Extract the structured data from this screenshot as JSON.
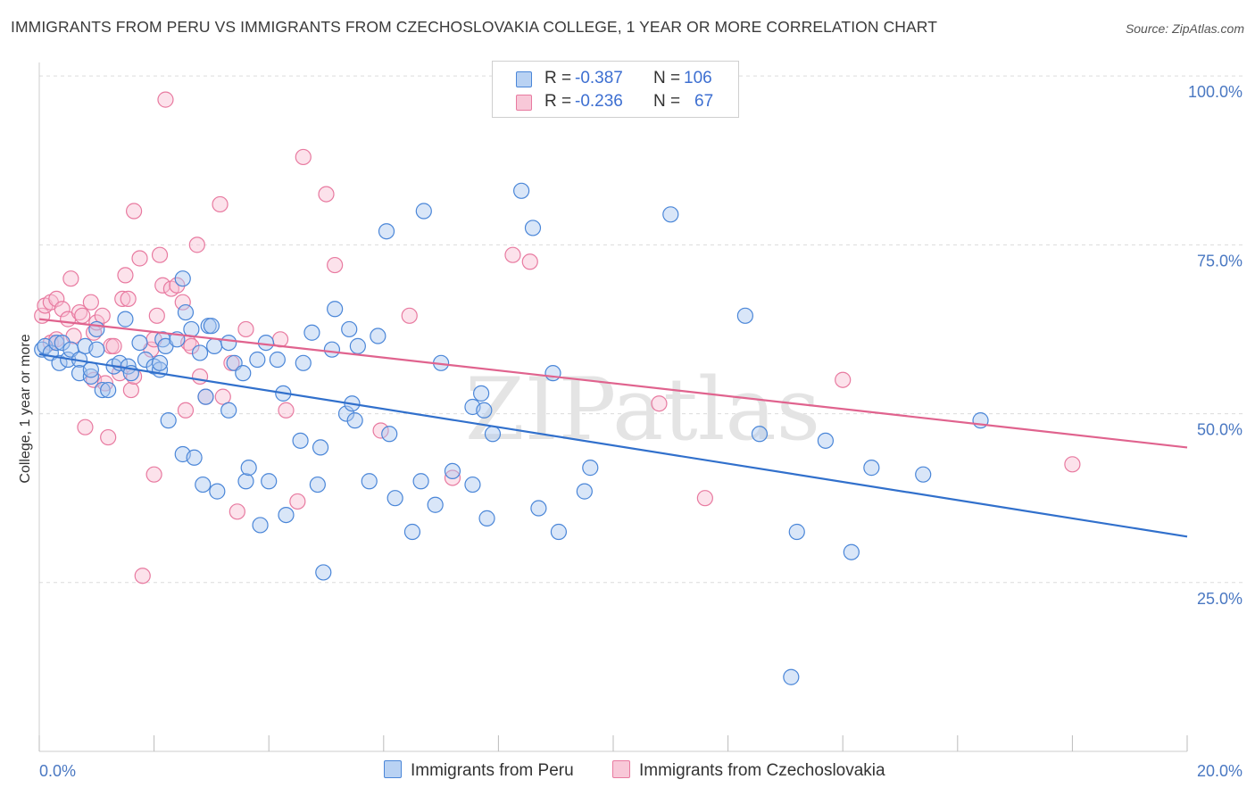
{
  "title": "IMMIGRANTS FROM PERU VS IMMIGRANTS FROM CZECHOSLOVAKIA COLLEGE, 1 YEAR OR MORE CORRELATION CHART",
  "source": "Source: ZipAtlas.com",
  "legend": {
    "r_label": "R =",
    "n_label": "N =",
    "series": [
      {
        "r": "-0.387",
        "n": "106"
      },
      {
        "r": "-0.236",
        "n": "67"
      }
    ]
  },
  "watermark": "ZIPatlas",
  "chart_data": {
    "type": "scatter",
    "title": "IMMIGRANTS FROM PERU VS IMMIGRANTS FROM CZECHOSLOVAKIA COLLEGE, 1 YEAR OR MORE CORRELATION CHART",
    "xlabel": "",
    "ylabel": "College, 1 year or more",
    "xlim": [
      0,
      20
    ],
    "ylim": [
      0,
      102
    ],
    "x_tick_labels": [
      "0.0%",
      "20.0%"
    ],
    "y_ticks": [
      25,
      50,
      75,
      100
    ],
    "y_tick_labels": [
      "25.0%",
      "50.0%",
      "75.0%",
      "100.0%"
    ],
    "grid": true,
    "colors": {
      "peru": "#4a86d8",
      "czech": "#e87aa0",
      "peru_line": "#3170cc",
      "czech_line": "#e0638e"
    },
    "series": [
      {
        "name": "Immigrants from Peru",
        "r": -0.387,
        "n": 106,
        "trend": {
          "x0": 0,
          "y0": 58.8,
          "x1": 20,
          "y1": 31.8
        },
        "points": [
          [
            0.05,
            59.5
          ],
          [
            0.1,
            60
          ],
          [
            0.2,
            59
          ],
          [
            0.3,
            60.5
          ],
          [
            0.35,
            57.5
          ],
          [
            0.4,
            60.5
          ],
          [
            0.5,
            58
          ],
          [
            0.55,
            59.5
          ],
          [
            0.7,
            58
          ],
          [
            0.7,
            56
          ],
          [
            0.8,
            60
          ],
          [
            0.9,
            55.5
          ],
          [
            0.9,
            56.5
          ],
          [
            1.0,
            62.5
          ],
          [
            1.0,
            59.5
          ],
          [
            1.1,
            53.5
          ],
          [
            1.2,
            53.5
          ],
          [
            1.3,
            57
          ],
          [
            1.4,
            57.5
          ],
          [
            1.5,
            64
          ],
          [
            1.55,
            57
          ],
          [
            1.6,
            56
          ],
          [
            1.75,
            60.5
          ],
          [
            1.85,
            58
          ],
          [
            2.0,
            57
          ],
          [
            2.1,
            56.5
          ],
          [
            2.15,
            61
          ],
          [
            2.1,
            57.5
          ],
          [
            2.2,
            60
          ],
          [
            2.25,
            49
          ],
          [
            2.4,
            61
          ],
          [
            2.5,
            70
          ],
          [
            2.5,
            44
          ],
          [
            2.55,
            65
          ],
          [
            2.65,
            62.5
          ],
          [
            2.7,
            43.5
          ],
          [
            2.8,
            59
          ],
          [
            2.85,
            39.5
          ],
          [
            2.9,
            52.5
          ],
          [
            2.95,
            63
          ],
          [
            3.0,
            63
          ],
          [
            3.1,
            38.5
          ],
          [
            3.05,
            60
          ],
          [
            3.3,
            60.5
          ],
          [
            3.3,
            50.5
          ],
          [
            3.4,
            57.5
          ],
          [
            3.55,
            56
          ],
          [
            3.6,
            40
          ],
          [
            3.65,
            42
          ],
          [
            3.8,
            58
          ],
          [
            3.85,
            33.5
          ],
          [
            3.95,
            60.5
          ],
          [
            4.0,
            40
          ],
          [
            4.15,
            58
          ],
          [
            4.25,
            53
          ],
          [
            4.3,
            35
          ],
          [
            4.55,
            46
          ],
          [
            4.6,
            57.5
          ],
          [
            4.75,
            62
          ],
          [
            4.85,
            39.5
          ],
          [
            4.9,
            45
          ],
          [
            4.95,
            26.5
          ],
          [
            5.1,
            59.5
          ],
          [
            5.15,
            65.5
          ],
          [
            5.35,
            50
          ],
          [
            5.4,
            62.5
          ],
          [
            5.45,
            51.5
          ],
          [
            5.5,
            49
          ],
          [
            5.55,
            60
          ],
          [
            5.75,
            40
          ],
          [
            5.9,
            61.5
          ],
          [
            6.05,
            77
          ],
          [
            6.1,
            47
          ],
          [
            6.2,
            37.5
          ],
          [
            6.5,
            32.5
          ],
          [
            6.65,
            40
          ],
          [
            6.7,
            80
          ],
          [
            6.9,
            36.5
          ],
          [
            7.0,
            57.5
          ],
          [
            7.2,
            41.5
          ],
          [
            7.55,
            51
          ],
          [
            7.55,
            39.5
          ],
          [
            7.7,
            53
          ],
          [
            7.75,
            50.5
          ],
          [
            7.8,
            34.5
          ],
          [
            7.9,
            47
          ],
          [
            8.4,
            83
          ],
          [
            8.6,
            77.5
          ],
          [
            8.7,
            36
          ],
          [
            8.95,
            56
          ],
          [
            9.05,
            32.5
          ],
          [
            9.5,
            38.5
          ],
          [
            9.6,
            42
          ],
          [
            11.0,
            79.5
          ],
          [
            12.3,
            64.5
          ],
          [
            12.55,
            47
          ],
          [
            13.2,
            32.5
          ],
          [
            13.7,
            46
          ],
          [
            14.15,
            29.5
          ],
          [
            14.5,
            42
          ],
          [
            15.4,
            41
          ],
          [
            16.4,
            49
          ],
          [
            13.1,
            11
          ]
        ]
      },
      {
        "name": "Immigrants from Czechoslovakia",
        "r": -0.236,
        "n": 67,
        "trend": {
          "x0": 0,
          "y0": 64.0,
          "x1": 20,
          "y1": 45.0
        },
        "points": [
          [
            0.05,
            64.5
          ],
          [
            0.1,
            66
          ],
          [
            0.2,
            66.5
          ],
          [
            0.2,
            60.5
          ],
          [
            0.3,
            67
          ],
          [
            0.3,
            61
          ],
          [
            0.4,
            65.5
          ],
          [
            0.5,
            64
          ],
          [
            0.55,
            70
          ],
          [
            0.6,
            61.5
          ],
          [
            0.7,
            65
          ],
          [
            0.75,
            64.5
          ],
          [
            0.8,
            48
          ],
          [
            0.9,
            66.5
          ],
          [
            0.95,
            62
          ],
          [
            0.95,
            55
          ],
          [
            1.0,
            63.5
          ],
          [
            1.1,
            64.5
          ],
          [
            1.15,
            54.5
          ],
          [
            1.2,
            46.5
          ],
          [
            1.25,
            60
          ],
          [
            1.3,
            60
          ],
          [
            1.4,
            56
          ],
          [
            1.45,
            67
          ],
          [
            1.5,
            70.5
          ],
          [
            1.55,
            67
          ],
          [
            1.6,
            53.5
          ],
          [
            1.65,
            55.5
          ],
          [
            1.65,
            80
          ],
          [
            1.75,
            73
          ],
          [
            1.8,
            26
          ],
          [
            1.95,
            59.5
          ],
          [
            2.0,
            61
          ],
          [
            2.0,
            41
          ],
          [
            2.05,
            64.5
          ],
          [
            2.1,
            73.5
          ],
          [
            2.15,
            69
          ],
          [
            2.2,
            96.5
          ],
          [
            2.3,
            68.5
          ],
          [
            2.4,
            69
          ],
          [
            2.5,
            66.5
          ],
          [
            2.55,
            50.5
          ],
          [
            2.6,
            60.5
          ],
          [
            2.65,
            60
          ],
          [
            2.75,
            75
          ],
          [
            2.8,
            55.5
          ],
          [
            2.9,
            52.5
          ],
          [
            3.15,
            81
          ],
          [
            3.2,
            52.5
          ],
          [
            3.35,
            57.5
          ],
          [
            3.45,
            35.5
          ],
          [
            3.6,
            62.5
          ],
          [
            4.2,
            61
          ],
          [
            4.3,
            50.5
          ],
          [
            4.5,
            37
          ],
          [
            4.6,
            88
          ],
          [
            5.0,
            82.5
          ],
          [
            5.15,
            72
          ],
          [
            5.95,
            47.5
          ],
          [
            6.45,
            64.5
          ],
          [
            7.2,
            40.5
          ],
          [
            8.25,
            73.5
          ],
          [
            8.55,
            72.5
          ],
          [
            10.8,
            51.5
          ],
          [
            11.6,
            37.5
          ],
          [
            14.0,
            55
          ],
          [
            18.0,
            42.5
          ]
        ]
      }
    ]
  },
  "bottom_legend": [
    "Immigrants from Peru",
    "Immigrants from Czechoslovakia"
  ]
}
